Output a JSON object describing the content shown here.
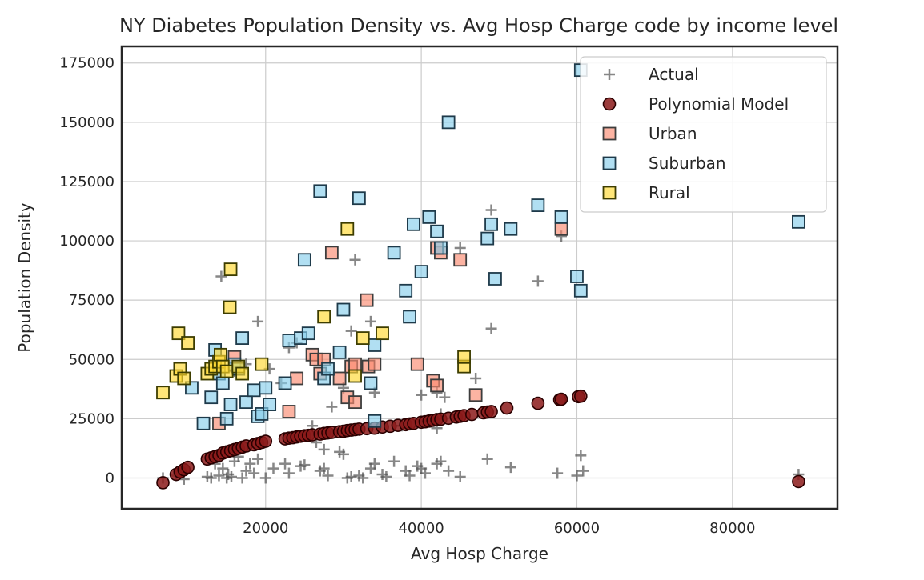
{
  "chart_data": {
    "type": "scatter",
    "title": "NY Diabetes Population Density vs. Avg Hosp Charge code by income level",
    "xlabel": "Avg Hosp Charge",
    "ylabel": "Population Density",
    "xlim": [
      1500,
      93500
    ],
    "ylim": [
      -13000,
      182000
    ],
    "xticks": [
      20000,
      40000,
      60000,
      80000
    ],
    "yticks": [
      0,
      25000,
      50000,
      75000,
      100000,
      125000,
      150000,
      175000
    ],
    "grid": true,
    "legend_position": "top-right",
    "series": [
      {
        "name": "Actual",
        "marker": "plus",
        "color": "#555555",
        "points": [
          [
            6800,
            0
          ],
          [
            8500,
            1000
          ],
          [
            9000,
            2000
          ],
          [
            9500,
            -500
          ],
          [
            12500,
            500
          ],
          [
            13000,
            0
          ],
          [
            13500,
            6000
          ],
          [
            14000,
            1000
          ],
          [
            14500,
            4000
          ],
          [
            15000,
            0
          ],
          [
            15200,
            1500
          ],
          [
            15600,
            500
          ],
          [
            16000,
            7000
          ],
          [
            16500,
            9000
          ],
          [
            17000,
            0
          ],
          [
            17500,
            3000
          ],
          [
            18000,
            6000
          ],
          [
            18500,
            2000
          ],
          [
            19000,
            8000
          ],
          [
            20000,
            0
          ],
          [
            21000,
            4000
          ],
          [
            22500,
            6000
          ],
          [
            23000,
            2000
          ],
          [
            24500,
            5000
          ],
          [
            25000,
            5500
          ],
          [
            27000,
            3000
          ],
          [
            27500,
            4000
          ],
          [
            28000,
            1000
          ],
          [
            29500,
            11000
          ],
          [
            30000,
            10000
          ],
          [
            30500,
            0
          ],
          [
            31000,
            500
          ],
          [
            32000,
            1000
          ],
          [
            32500,
            0
          ],
          [
            33500,
            4000
          ],
          [
            34000,
            6000
          ],
          [
            35000,
            1500
          ],
          [
            35500,
            500
          ],
          [
            36500,
            7000
          ],
          [
            38000,
            3000
          ],
          [
            38500,
            1000
          ],
          [
            39500,
            5000
          ],
          [
            40000,
            4000
          ],
          [
            40500,
            2000
          ],
          [
            42000,
            6000
          ],
          [
            42500,
            7000
          ],
          [
            43500,
            3000
          ],
          [
            45000,
            500
          ],
          [
            48500,
            8000
          ],
          [
            51500,
            4500
          ],
          [
            57500,
            2000
          ],
          [
            60000,
            1000
          ],
          [
            60500,
            9500
          ],
          [
            60800,
            3000
          ],
          [
            88500,
            1500
          ],
          [
            14300,
            85000
          ],
          [
            19000,
            66000
          ],
          [
            31500,
            92000
          ],
          [
            33500,
            66000
          ],
          [
            31000,
            62000
          ],
          [
            24000,
            57000
          ],
          [
            23000,
            55000
          ],
          [
            26000,
            22000
          ],
          [
            28500,
            30000
          ],
          [
            30000,
            38000
          ],
          [
            34000,
            36000
          ],
          [
            40000,
            35000
          ],
          [
            42000,
            36000
          ],
          [
            42500,
            27000
          ],
          [
            43000,
            34000
          ],
          [
            45000,
            97000
          ],
          [
            49000,
            113000
          ],
          [
            49000,
            63000
          ],
          [
            55000,
            83000
          ],
          [
            58000,
            102000
          ],
          [
            47000,
            42000
          ],
          [
            26500,
            15000
          ],
          [
            27500,
            12000
          ],
          [
            22000,
            40000
          ],
          [
            20500,
            46000
          ],
          [
            17500,
            48000
          ],
          [
            16000,
            45000
          ],
          [
            37500,
            22000
          ],
          [
            41000,
            24000
          ],
          [
            42000,
            21000
          ]
        ]
      },
      {
        "name": "Polynomial Model",
        "marker": "circle",
        "color": "#8b1a1a",
        "edge": "#2a0000",
        "points": [
          [
            6800,
            -2000
          ],
          [
            8500,
            1500
          ],
          [
            9000,
            2500
          ],
          [
            9500,
            3500
          ],
          [
            10000,
            4500
          ],
          [
            12500,
            8000
          ],
          [
            13000,
            8500
          ],
          [
            13500,
            9000
          ],
          [
            14000,
            9500
          ],
          [
            14500,
            10500
          ],
          [
            15000,
            11000
          ],
          [
            15500,
            11500
          ],
          [
            16000,
            12000
          ],
          [
            16500,
            12500
          ],
          [
            17000,
            13000
          ],
          [
            17500,
            13500
          ],
          [
            18500,
            14000
          ],
          [
            19000,
            14500
          ],
          [
            19500,
            15000
          ],
          [
            20000,
            15500
          ],
          [
            22500,
            16500
          ],
          [
            23000,
            16800
          ],
          [
            23500,
            17000
          ],
          [
            24000,
            17300
          ],
          [
            24500,
            17600
          ],
          [
            25000,
            17800
          ],
          [
            25500,
            18000
          ],
          [
            26000,
            18200
          ],
          [
            27000,
            18500
          ],
          [
            27500,
            18800
          ],
          [
            28000,
            19000
          ],
          [
            28500,
            19200
          ],
          [
            29500,
            19500
          ],
          [
            30000,
            19700
          ],
          [
            30500,
            20000
          ],
          [
            31000,
            20200
          ],
          [
            31500,
            20400
          ],
          [
            32000,
            20600
          ],
          [
            33000,
            20800
          ],
          [
            34000,
            21000
          ],
          [
            35000,
            21500
          ],
          [
            36000,
            21800
          ],
          [
            37000,
            22200
          ],
          [
            38000,
            22500
          ],
          [
            38500,
            22800
          ],
          [
            39000,
            23000
          ],
          [
            40000,
            23500
          ],
          [
            40500,
            23700
          ],
          [
            41000,
            24000
          ],
          [
            41500,
            24300
          ],
          [
            42000,
            24600
          ],
          [
            42500,
            24800
          ],
          [
            43500,
            25200
          ],
          [
            44500,
            25700
          ],
          [
            45000,
            26000
          ],
          [
            45500,
            26300
          ],
          [
            46500,
            26800
          ],
          [
            48000,
            27500
          ],
          [
            48500,
            27800
          ],
          [
            49000,
            28000
          ],
          [
            51000,
            29500
          ],
          [
            55000,
            31500
          ],
          [
            57800,
            33000
          ],
          [
            58000,
            33200
          ],
          [
            60200,
            34300
          ],
          [
            60500,
            34500
          ],
          [
            88500,
            -1500
          ]
        ]
      },
      {
        "name": "Urban",
        "marker": "square",
        "color": "#fa8a70",
        "edge": "#3d3d3d",
        "points": [
          [
            14000,
            23000
          ],
          [
            16000,
            51000
          ],
          [
            23000,
            28000
          ],
          [
            24000,
            42000
          ],
          [
            26000,
            52000
          ],
          [
            26500,
            50000
          ],
          [
            27000,
            44000
          ],
          [
            27500,
            50000
          ],
          [
            28500,
            95000
          ],
          [
            29500,
            42000
          ],
          [
            30500,
            34000
          ],
          [
            31000,
            47000
          ],
          [
            31500,
            48000
          ],
          [
            31500,
            32000
          ],
          [
            33000,
            75000
          ],
          [
            33200,
            47000
          ],
          [
            34000,
            48000
          ],
          [
            39500,
            48000
          ],
          [
            41500,
            41000
          ],
          [
            42000,
            39000
          ],
          [
            42500,
            95000
          ],
          [
            42000,
            97000
          ],
          [
            45000,
            92000
          ],
          [
            47000,
            35000
          ],
          [
            58000,
            105000
          ]
        ]
      },
      {
        "name": "Suburban",
        "marker": "square",
        "color": "#87ceeb",
        "edge": "#1e3a4a",
        "points": [
          [
            10500,
            38000
          ],
          [
            12000,
            23000
          ],
          [
            13000,
            34000
          ],
          [
            13500,
            54000
          ],
          [
            14000,
            44000
          ],
          [
            14500,
            40000
          ],
          [
            15000,
            25000
          ],
          [
            15500,
            31000
          ],
          [
            16000,
            48000
          ],
          [
            16500,
            46000
          ],
          [
            17000,
            59000
          ],
          [
            17500,
            32000
          ],
          [
            18500,
            37000
          ],
          [
            19000,
            26000
          ],
          [
            19500,
            27000
          ],
          [
            20000,
            38000
          ],
          [
            20500,
            31000
          ],
          [
            22500,
            40000
          ],
          [
            23000,
            58000
          ],
          [
            24500,
            59000
          ],
          [
            25500,
            61000
          ],
          [
            25000,
            92000
          ],
          [
            27000,
            121000
          ],
          [
            27500,
            42000
          ],
          [
            28000,
            46000
          ],
          [
            29500,
            53000
          ],
          [
            30000,
            71000
          ],
          [
            32000,
            118000
          ],
          [
            33500,
            40000
          ],
          [
            34000,
            56000
          ],
          [
            34000,
            24000
          ],
          [
            36500,
            95000
          ],
          [
            38000,
            79000
          ],
          [
            38500,
            68000
          ],
          [
            39000,
            107000
          ],
          [
            40000,
            87000
          ],
          [
            41000,
            110000
          ],
          [
            42000,
            104000
          ],
          [
            42500,
            97000
          ],
          [
            43500,
            150000
          ],
          [
            48500,
            101000
          ],
          [
            49000,
            107000
          ],
          [
            49500,
            84000
          ],
          [
            51500,
            105000
          ],
          [
            55000,
            115000
          ],
          [
            58000,
            110000
          ],
          [
            60000,
            85000
          ],
          [
            60500,
            79000
          ],
          [
            60500,
            172000
          ],
          [
            88500,
            108000
          ]
        ]
      },
      {
        "name": "Rural",
        "marker": "square",
        "color": "#ffd92f",
        "edge": "#3d3d00",
        "points": [
          [
            6800,
            36000
          ],
          [
            8500,
            43000
          ],
          [
            8800,
            61000
          ],
          [
            9000,
            46000
          ],
          [
            9500,
            42000
          ],
          [
            10000,
            57000
          ],
          [
            12500,
            44000
          ],
          [
            13000,
            46000
          ],
          [
            13500,
            47000
          ],
          [
            14000,
            49000
          ],
          [
            14200,
            52000
          ],
          [
            14500,
            47000
          ],
          [
            15000,
            45000
          ],
          [
            15500,
            88000
          ],
          [
            15400,
            72000
          ],
          [
            16500,
            47000
          ],
          [
            17000,
            44000
          ],
          [
            19500,
            48000
          ],
          [
            27500,
            68000
          ],
          [
            30500,
            105000
          ],
          [
            31500,
            43000
          ],
          [
            32500,
            59000
          ],
          [
            35000,
            61000
          ],
          [
            45500,
            47000
          ],
          [
            45500,
            51000
          ]
        ]
      }
    ]
  }
}
